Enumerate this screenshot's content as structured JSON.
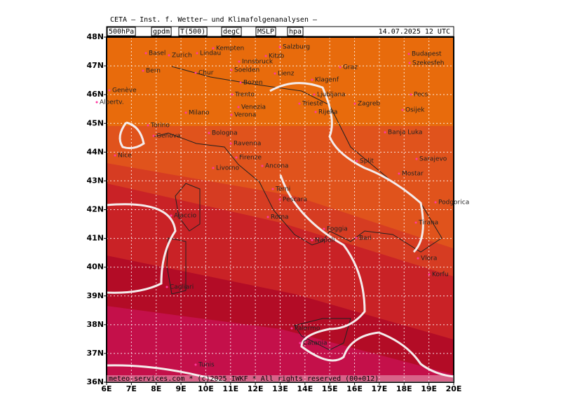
{
  "header": {
    "title": "CETA — Inst. f. Wetter— und Klimafolgenanalysen —",
    "fields": [
      "500hPa",
      "gpdm",
      "T(500)",
      "degC",
      "MSLP",
      "hpa"
    ],
    "datetime": "14.07.2025 12 UTC"
  },
  "map": {
    "lat_labels": [
      "48N",
      "47N",
      "46N",
      "45N",
      "44N",
      "43N",
      "42N",
      "41N",
      "40N",
      "39N",
      "38N",
      "37N",
      "36N"
    ],
    "lon_labels": [
      "6E",
      "7E",
      "8E",
      "9E",
      "10E",
      "11E",
      "12E",
      "13E",
      "14E",
      "15E",
      "16E",
      "17E",
      "18E",
      "19E",
      "20E"
    ],
    "places": [
      "Kempten",
      "Salzburg",
      "Basel",
      "Zurich",
      "Lindau",
      "Kitzb",
      "Budapest",
      "Innsbruck",
      "Szekesfeh",
      "Bern",
      "Chur",
      "Soelden",
      "Lienz",
      "Graz",
      "Bozen",
      "Klagenf",
      "Genève",
      "Trento",
      "Ljubljana",
      "Pecs",
      "Albertv.",
      "Venezia",
      "Trieste",
      "Zagreb",
      "Rijeka",
      "Osijek",
      "Milano",
      "Verona",
      "Torino",
      "Bologna",
      "Banja Luka",
      "Genova",
      "Ravenna",
      "Nice",
      "Firenze",
      "Ancona",
      "Split",
      "Sarajevo",
      "Livorno",
      "Mostar",
      "Terni",
      "Pescara",
      "Podgorica",
      "Ajaccio",
      "Roma",
      "Tirana",
      "Foggia",
      "Bari",
      "Napoli",
      "Vlora",
      "Cagliari",
      "Korfu",
      "Palermo",
      "Catania",
      "Tunis"
    ]
  },
  "footer": "meteo-services.com * (c)2025 IWKF * All rights reserved (00+012)"
}
